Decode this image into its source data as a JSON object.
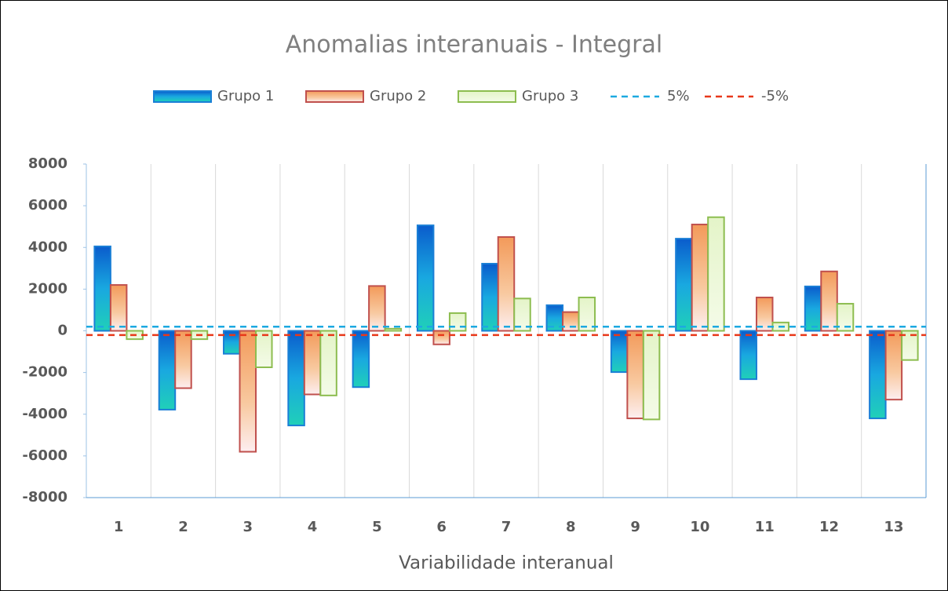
{
  "chart_data": {
    "type": "bar",
    "title": "Anomalias interanuais - Integral",
    "xlabel": "Variabilidade interanual",
    "categories": [
      "1",
      "2",
      "3",
      "4",
      "5",
      "6",
      "7",
      "8",
      "9",
      "10",
      "11",
      "12",
      "13"
    ],
    "series": [
      {
        "name": "Grupo 1",
        "color": "#1a7fd6",
        "values": [
          4050,
          -3780,
          -1100,
          -4540,
          -2700,
          5060,
          3220,
          1230,
          -1980,
          4420,
          -2320,
          2130,
          -4200
        ]
      },
      {
        "name": "Grupo 2",
        "color": "#c0504d",
        "values": [
          2200,
          -2750,
          -5800,
          -3050,
          2150,
          -650,
          4500,
          900,
          -4200,
          5100,
          1600,
          2850,
          -3300
        ]
      },
      {
        "name": "Grupo 3",
        "color": "#8dbd50",
        "values": [
          -400,
          -400,
          -1750,
          -3100,
          100,
          850,
          1550,
          1600,
          -4250,
          5450,
          400,
          1300,
          -1400
        ]
      }
    ],
    "lines": [
      {
        "name": "5%",
        "color": "#1ca9e0",
        "value": 200
      },
      {
        "name": "-5%",
        "color": "#e8381a",
        "value": -200
      }
    ],
    "ylim": [
      -8000,
      8000
    ],
    "yticks": [
      -8000,
      -6000,
      -4000,
      -2000,
      0,
      2000,
      4000,
      6000,
      8000
    ],
    "legend": "top"
  }
}
